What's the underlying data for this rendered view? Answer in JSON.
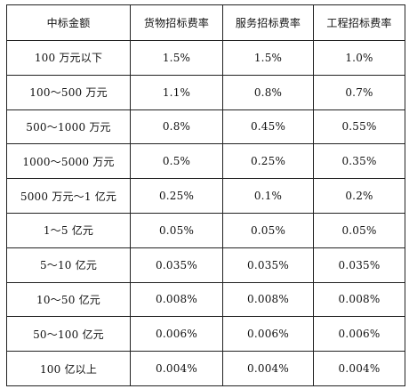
{
  "table": {
    "headers": [
      "中标金额",
      "货物招标费率",
      "服务招标费率",
      "工程招标费率"
    ],
    "rows": [
      [
        "100 万元以下",
        "1.5%",
        "1.5%",
        "1.0%"
      ],
      [
        "100～500 万元",
        "1.1%",
        "0.8%",
        "0.7%"
      ],
      [
        "500～1000 万元",
        "0.8%",
        "0.45%",
        "0.55%"
      ],
      [
        "1000～5000 万元",
        "0.5%",
        "0.25%",
        "0.35%"
      ],
      [
        "5000 万元～1 亿元",
        "0.25%",
        "0.1%",
        "0.2%"
      ],
      [
        "1～5 亿元",
        "0.05%",
        "0.05%",
        "0.05%"
      ],
      [
        "5～10 亿元",
        "0.035%",
        "0.035%",
        "0.035%"
      ],
      [
        "10～50 亿元",
        "0.008%",
        "0.008%",
        "0.008%"
      ],
      [
        "50～100 亿元",
        "0.006%",
        "0.006%",
        "0.006%"
      ],
      [
        "100 亿以上",
        "0.004%",
        "0.004%",
        "0.004%"
      ]
    ]
  }
}
